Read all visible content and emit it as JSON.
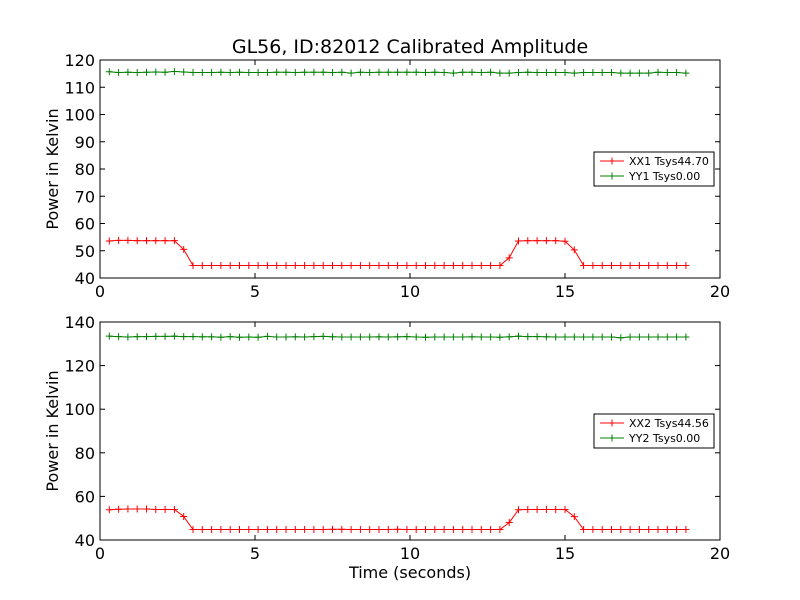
{
  "figure": {
    "title": "GL56, ID:82012 Calibrated Amplitude",
    "xlabel": "Time (seconds)"
  },
  "chart_data": [
    {
      "type": "line",
      "title": "GL56, ID:82012 Calibrated Amplitude",
      "xlabel": "",
      "ylabel": "Power in Kelvin",
      "xlim": [
        0,
        20
      ],
      "ylim": [
        40,
        120
      ],
      "xticks": [
        0,
        5,
        10,
        15,
        20
      ],
      "yticks": [
        40,
        50,
        60,
        70,
        80,
        90,
        100,
        110,
        120
      ],
      "grid": false,
      "legend_position": "right",
      "x": [
        0.3,
        0.6,
        0.9,
        1.2,
        1.5,
        1.8,
        2.1,
        2.4,
        2.7,
        3.0,
        3.3,
        3.6,
        3.9,
        4.2,
        4.5,
        4.8,
        5.1,
        5.4,
        5.7,
        6.0,
        6.3,
        6.6,
        6.9,
        7.2,
        7.5,
        7.8,
        8.1,
        8.4,
        8.7,
        9.0,
        9.3,
        9.6,
        9.9,
        10.2,
        10.5,
        10.8,
        11.1,
        11.4,
        11.7,
        12.0,
        12.3,
        12.6,
        12.9,
        13.2,
        13.5,
        13.8,
        14.1,
        14.4,
        14.7,
        15.0,
        15.3,
        15.6,
        15.9,
        16.2,
        16.5,
        16.8,
        17.1,
        17.4,
        17.7,
        18.0,
        18.3,
        18.6,
        18.9
      ],
      "series": [
        {
          "name": "XX1 Tsys44.70",
          "color": "#ff0000",
          "values": [
            53.6,
            53.8,
            53.8,
            53.7,
            53.7,
            53.7,
            53.7,
            53.7,
            50.5,
            44.6,
            44.6,
            44.6,
            44.6,
            44.6,
            44.6,
            44.6,
            44.6,
            44.6,
            44.6,
            44.6,
            44.6,
            44.6,
            44.6,
            44.6,
            44.6,
            44.6,
            44.6,
            44.6,
            44.6,
            44.6,
            44.6,
            44.6,
            44.6,
            44.6,
            44.6,
            44.6,
            44.6,
            44.6,
            44.6,
            44.6,
            44.6,
            44.6,
            44.6,
            47.4,
            53.6,
            53.7,
            53.7,
            53.7,
            53.7,
            53.5,
            50.3,
            44.6,
            44.6,
            44.6,
            44.6,
            44.6,
            44.6,
            44.6,
            44.6,
            44.6,
            44.6,
            44.6,
            44.6
          ]
        },
        {
          "name": "YY1 Tsys0.00",
          "color": "#008000",
          "values": [
            115.7,
            115.4,
            115.5,
            115.4,
            115.5,
            115.6,
            115.5,
            115.8,
            115.6,
            115.4,
            115.4,
            115.4,
            115.5,
            115.4,
            115.5,
            115.4,
            115.4,
            115.4,
            115.5,
            115.5,
            115.4,
            115.5,
            115.5,
            115.5,
            115.4,
            115.5,
            115.2,
            115.5,
            115.4,
            115.5,
            115.5,
            115.5,
            115.5,
            115.5,
            115.4,
            115.5,
            115.4,
            115.2,
            115.5,
            115.5,
            115.4,
            115.5,
            115.2,
            115.2,
            115.4,
            115.5,
            115.4,
            115.4,
            115.4,
            115.4,
            115.2,
            115.4,
            115.4,
            115.4,
            115.4,
            115.2,
            115.2,
            115.2,
            115.2,
            115.5,
            115.4,
            115.4,
            115.2
          ]
        }
      ]
    },
    {
      "type": "line",
      "title": "",
      "xlabel": "Time (seconds)",
      "ylabel": "Power in Kelvin",
      "xlim": [
        0,
        20
      ],
      "ylim": [
        40,
        140
      ],
      "xticks": [
        0,
        5,
        10,
        15,
        20
      ],
      "yticks": [
        40,
        60,
        80,
        100,
        120,
        140
      ],
      "grid": false,
      "legend_position": "right",
      "x": [
        0.3,
        0.6,
        0.9,
        1.2,
        1.5,
        1.8,
        2.1,
        2.4,
        2.7,
        3.0,
        3.3,
        3.6,
        3.9,
        4.2,
        4.5,
        4.8,
        5.1,
        5.4,
        5.7,
        6.0,
        6.3,
        6.6,
        6.9,
        7.2,
        7.5,
        7.8,
        8.1,
        8.4,
        8.7,
        9.0,
        9.3,
        9.6,
        9.9,
        10.2,
        10.5,
        10.8,
        11.1,
        11.4,
        11.7,
        12.0,
        12.3,
        12.6,
        12.9,
        13.2,
        13.5,
        13.8,
        14.1,
        14.4,
        14.7,
        15.0,
        15.3,
        15.6,
        15.9,
        16.2,
        16.5,
        16.8,
        17.1,
        17.4,
        17.7,
        18.0,
        18.3,
        18.6,
        18.9
      ],
      "series": [
        {
          "name": "XX2 Tsys44.56",
          "color": "#ff0000",
          "values": [
            53.9,
            54.1,
            54.2,
            54.2,
            54.2,
            54.0,
            54.0,
            54.0,
            50.8,
            44.8,
            44.8,
            44.8,
            44.8,
            44.8,
            44.8,
            44.8,
            44.8,
            44.8,
            44.8,
            44.8,
            44.8,
            44.8,
            44.8,
            44.8,
            44.9,
            44.9,
            44.8,
            44.8,
            44.8,
            44.8,
            44.8,
            44.9,
            44.8,
            44.8,
            44.8,
            44.8,
            44.8,
            44.8,
            44.8,
            44.8,
            44.8,
            44.8,
            44.8,
            48.0,
            53.9,
            54.0,
            54.0,
            54.0,
            54.0,
            54.0,
            50.7,
            44.8,
            44.8,
            44.8,
            44.8,
            44.8,
            44.8,
            44.8,
            44.8,
            44.8,
            44.8,
            44.8,
            44.8
          ]
        },
        {
          "name": "YY2 Tsys0.00",
          "color": "#008000",
          "values": [
            133.5,
            133.3,
            133.1,
            133.3,
            133.3,
            133.4,
            133.4,
            133.5,
            133.3,
            133.3,
            133.2,
            133.2,
            133.0,
            133.3,
            133.0,
            133.1,
            133.0,
            133.4,
            133.1,
            133.1,
            133.2,
            133.1,
            133.3,
            133.4,
            133.2,
            133.1,
            133.1,
            133.1,
            133.1,
            133.2,
            133.1,
            133.2,
            133.3,
            133.1,
            133.0,
            133.1,
            133.1,
            133.1,
            133.1,
            133.2,
            133.1,
            133.1,
            133.0,
            133.2,
            133.5,
            133.3,
            133.3,
            133.2,
            133.1,
            133.1,
            133.1,
            133.1,
            133.1,
            133.1,
            133.1,
            132.8,
            133.1,
            133.1,
            133.1,
            133.1,
            133.1,
            133.1,
            133.1
          ]
        }
      ]
    }
  ]
}
